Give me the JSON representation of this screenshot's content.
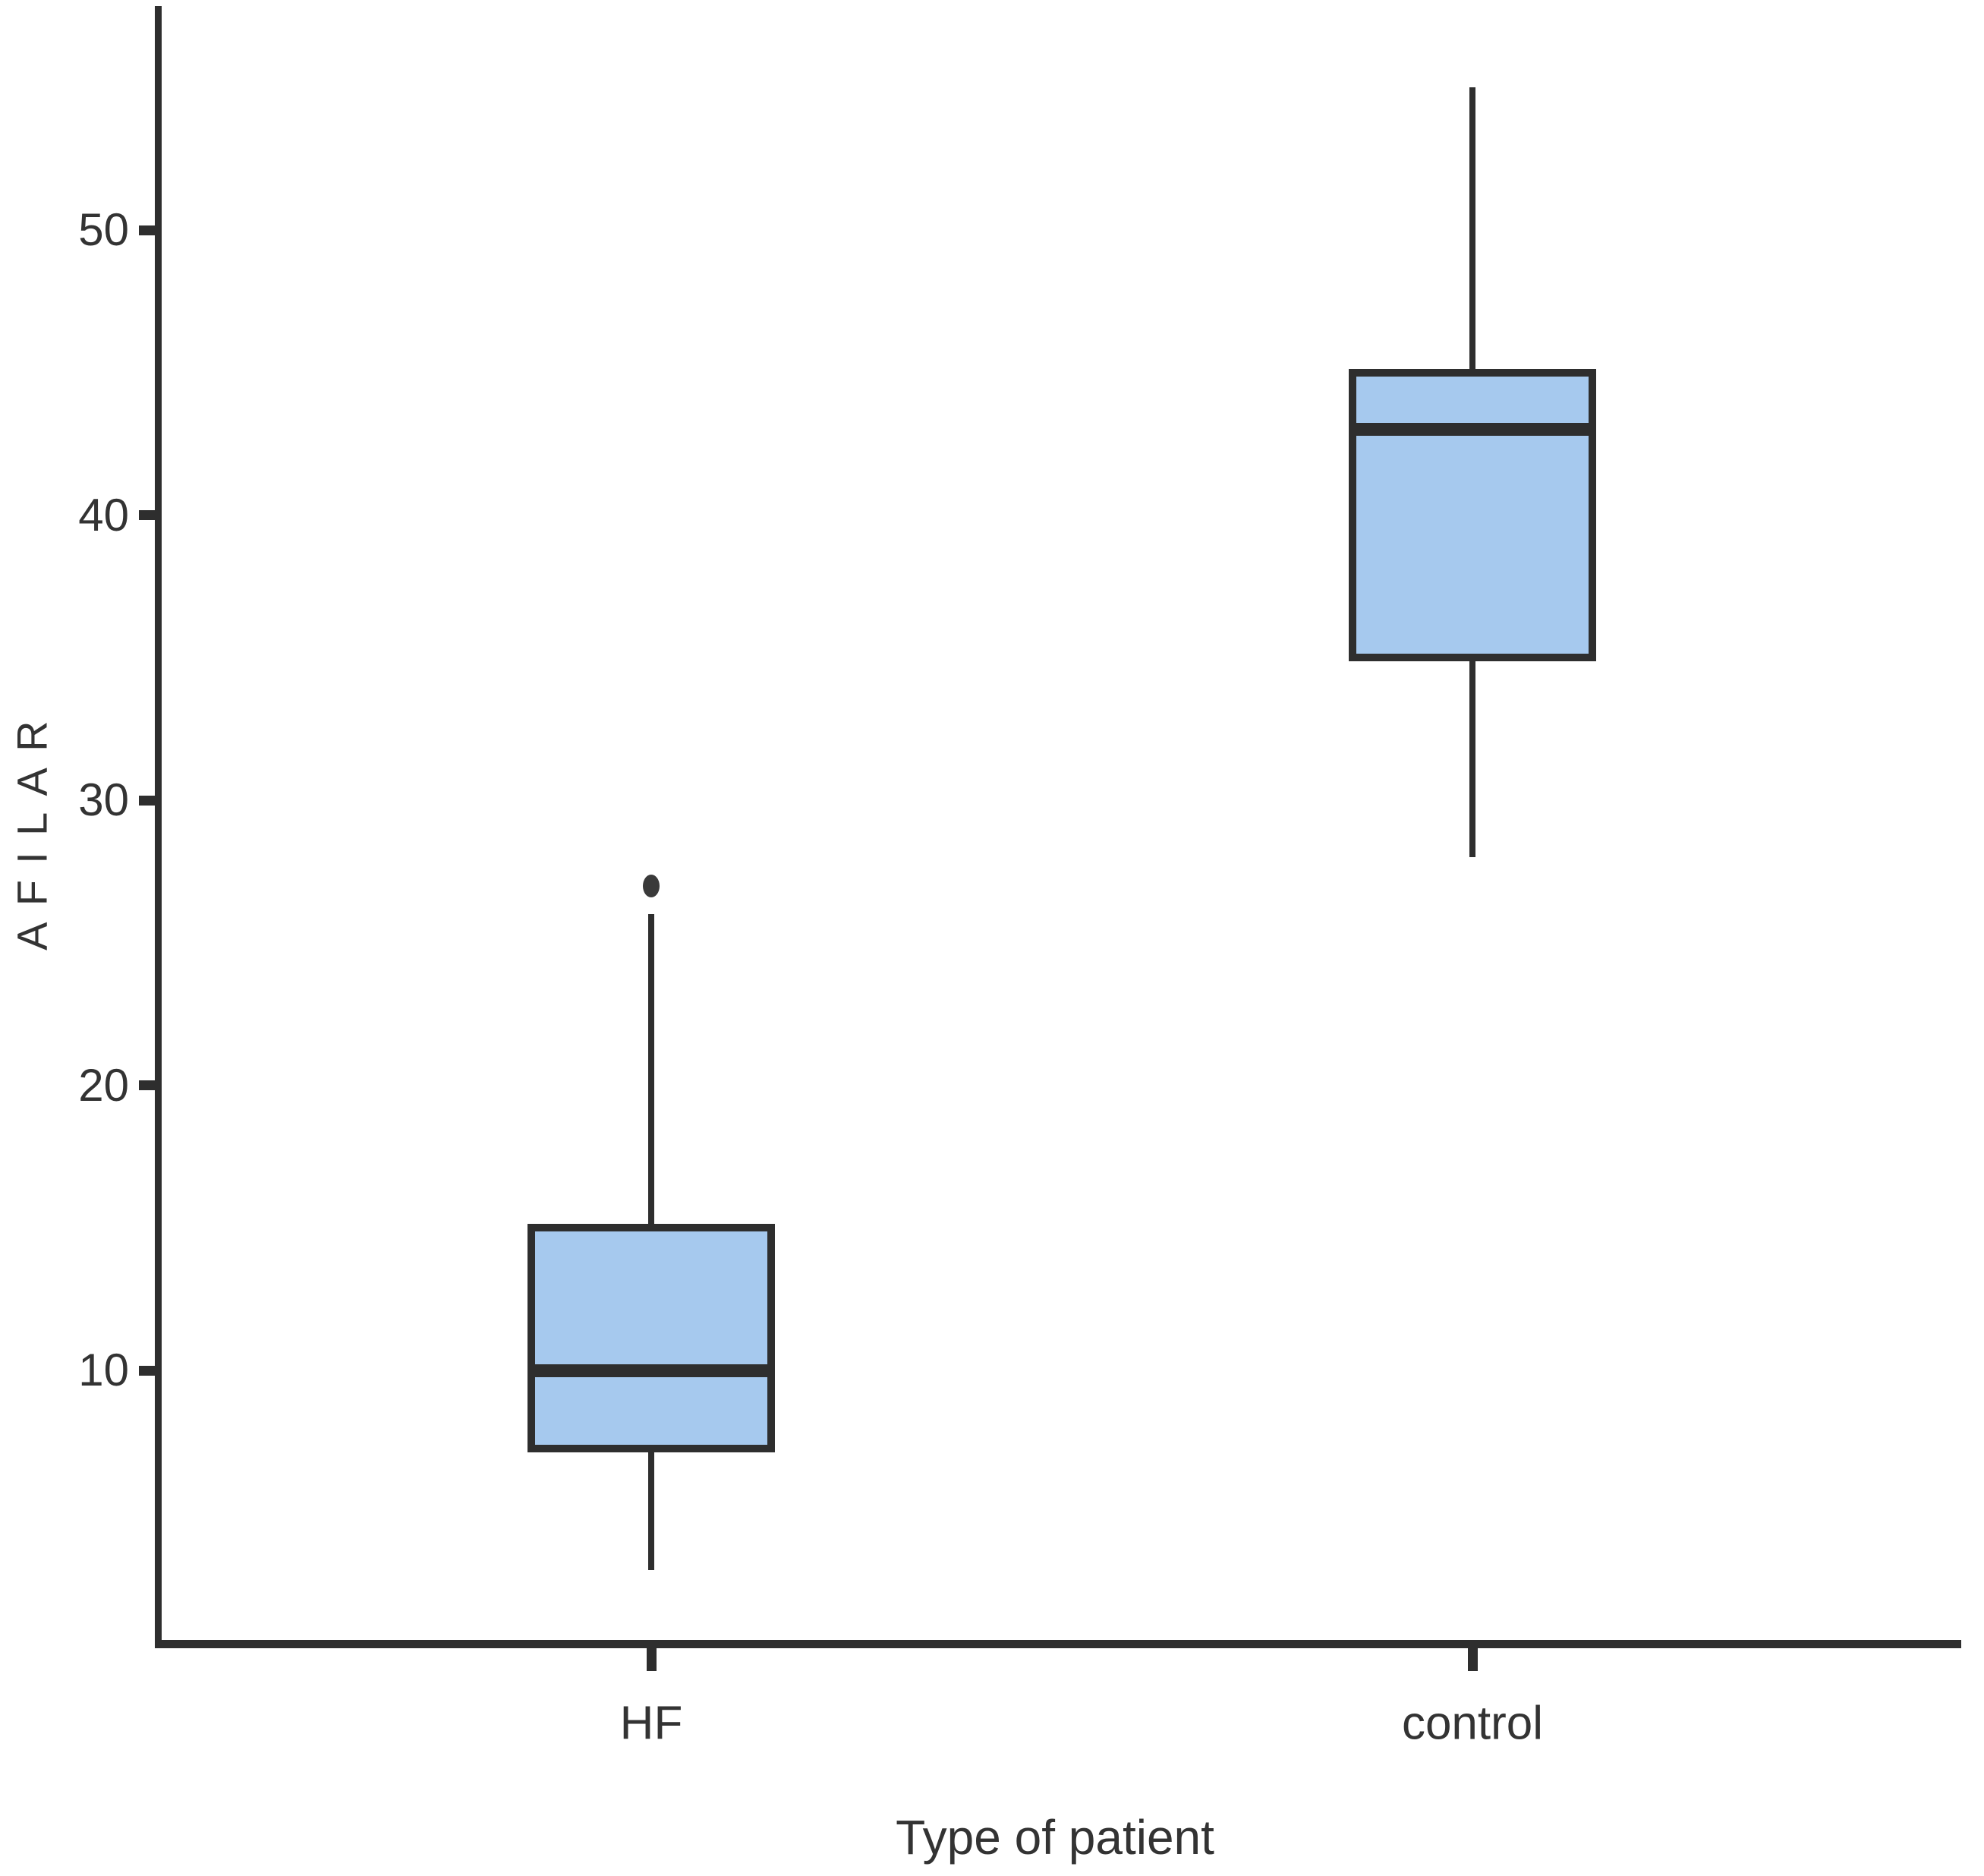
{
  "chart_data": {
    "type": "boxplot",
    "title": "",
    "xlabel": "Type of patient",
    "ylabel": "AFILAR",
    "y_ticks": [
      10,
      20,
      30,
      40,
      50
    ],
    "ylim": [
      0.4,
      57.9
    ],
    "grid": false,
    "legend": "none",
    "categories": [
      "HF",
      "control"
    ],
    "series": [
      {
        "name": "HF",
        "whisker_low": 3,
        "q1": 7.25,
        "median": 10,
        "q3": 15,
        "whisker_high": 26,
        "outliers": [
          27
        ]
      },
      {
        "name": "control",
        "whisker_low": 28,
        "q1": 35,
        "median": 43,
        "q3": 45,
        "whisker_high": 55,
        "outliers": []
      }
    ],
    "colors": {
      "box_fill": "#a6c9ee",
      "line": "#2e2e2e",
      "outlier": "#3a3a3a",
      "text": "#333333"
    }
  }
}
